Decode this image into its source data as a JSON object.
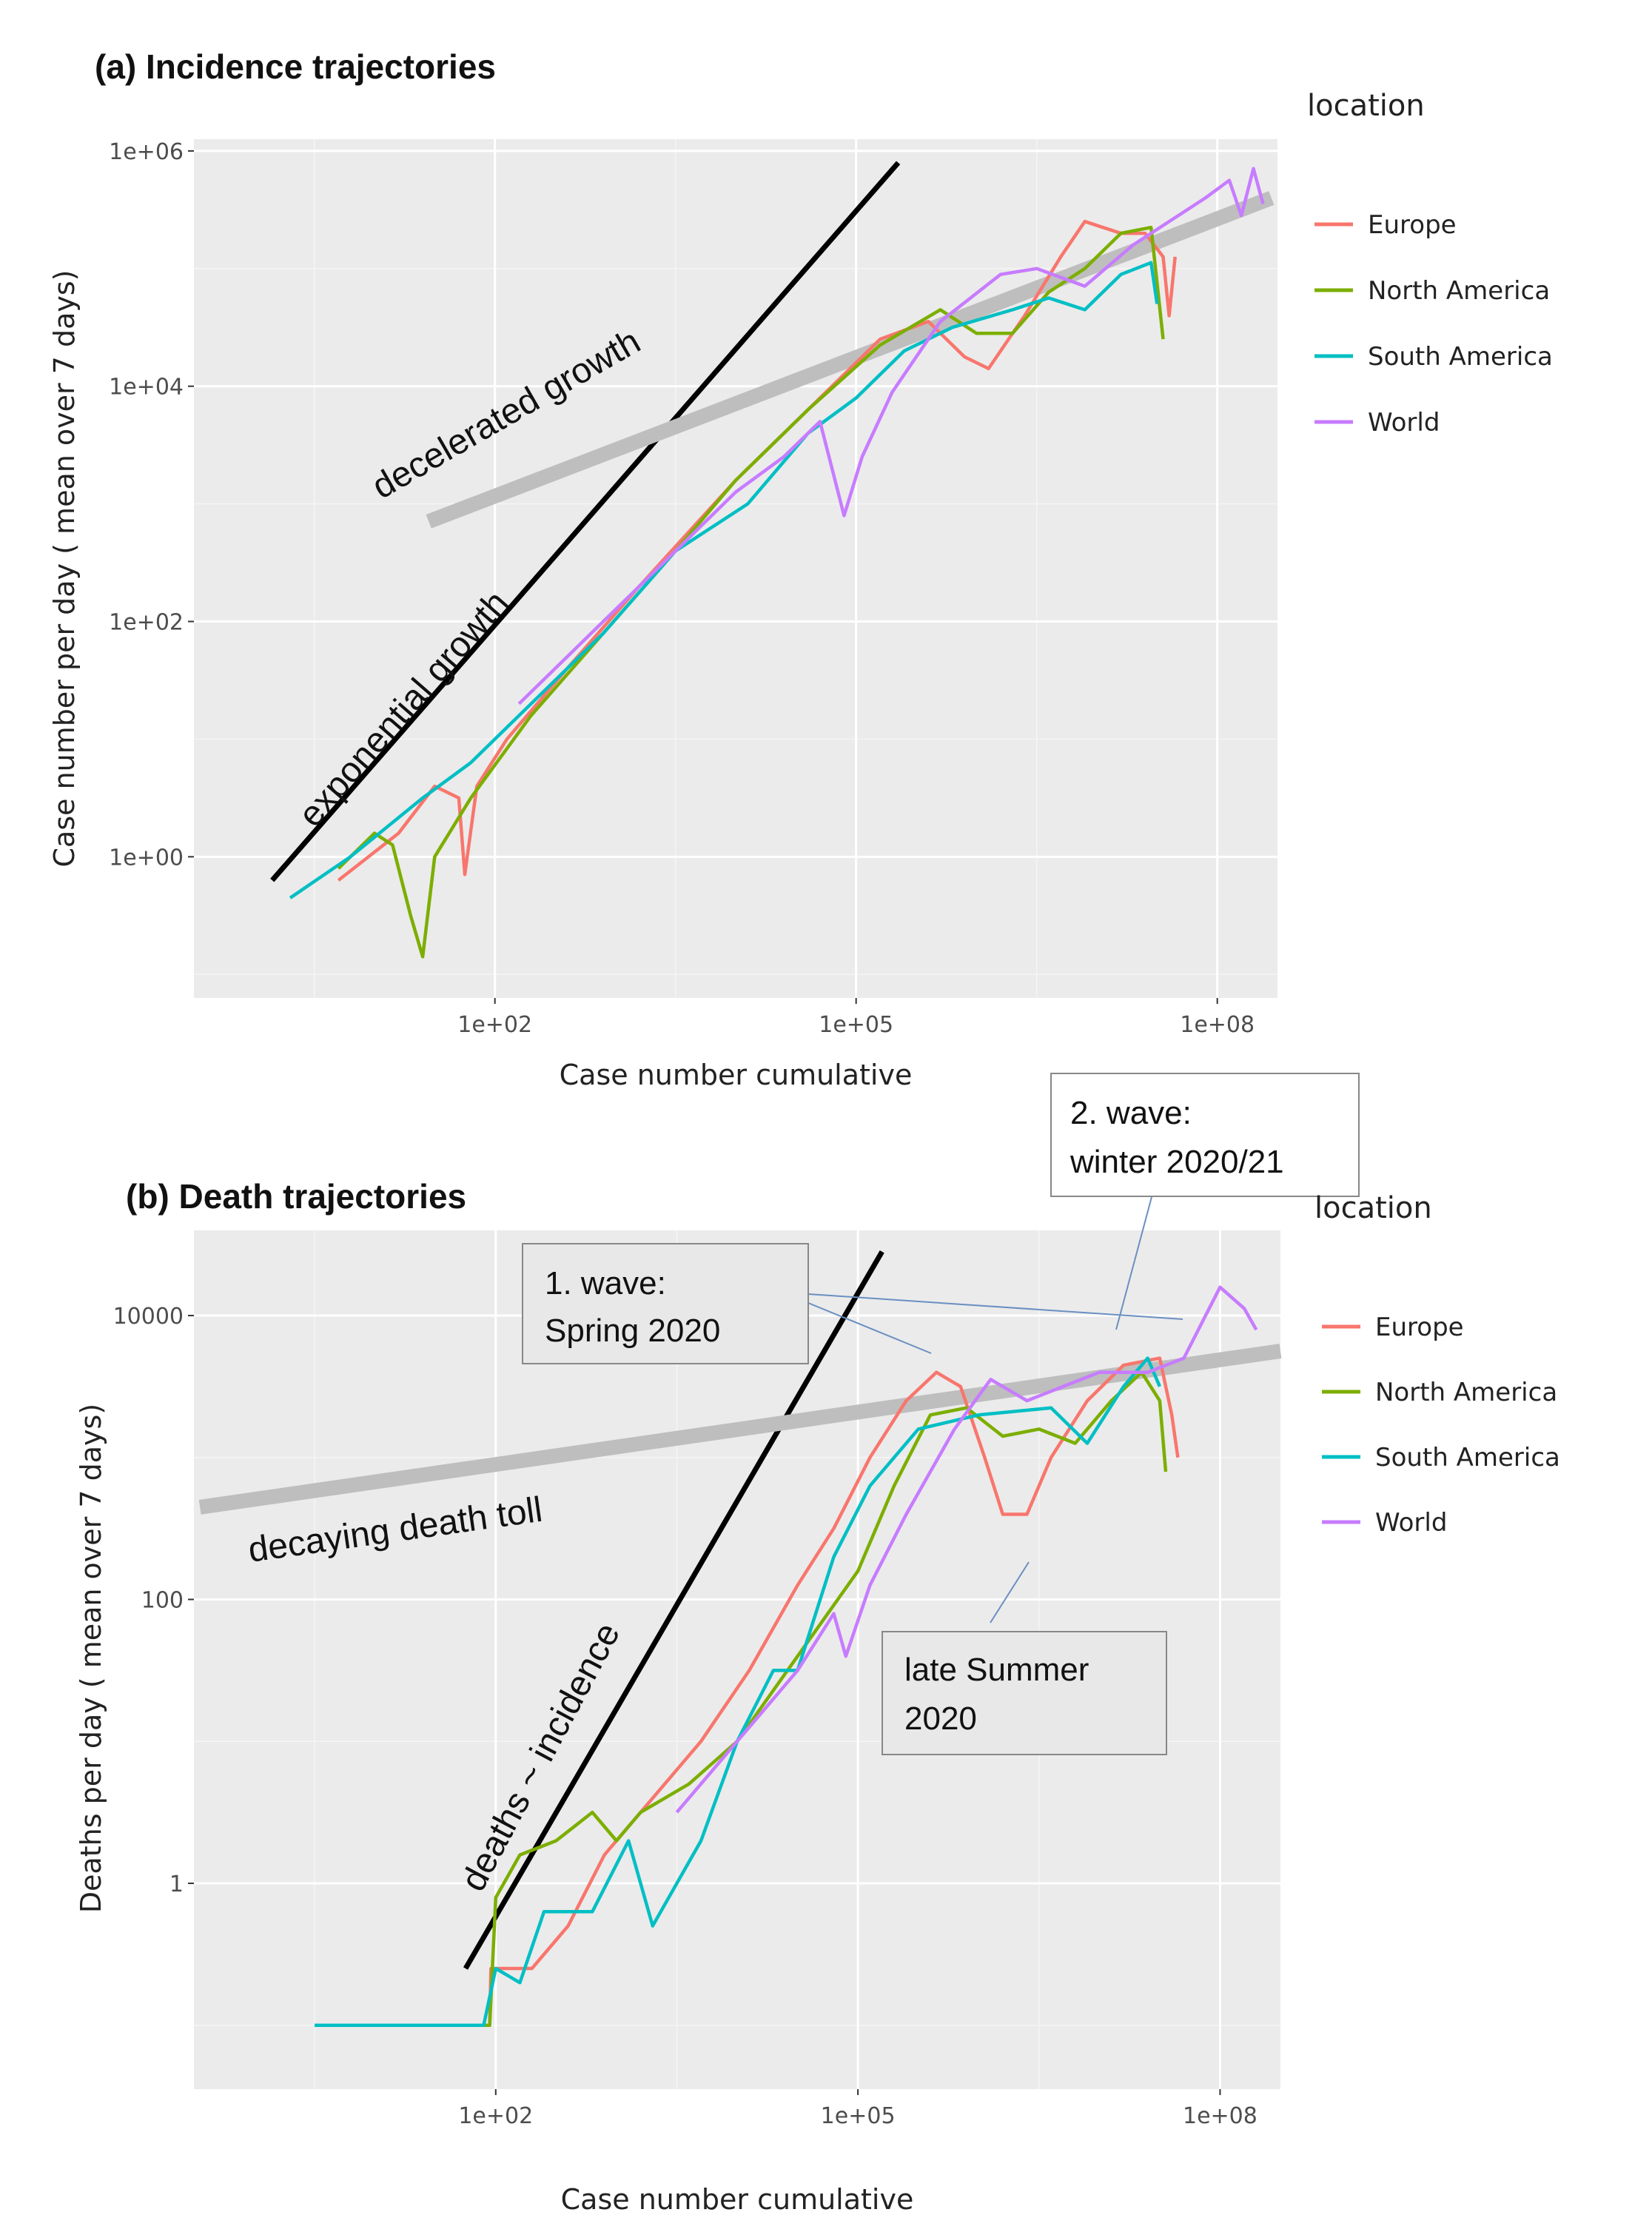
{
  "colors": {
    "Europe": "#F8766D",
    "North America": "#7CAE00",
    "South America": "#00BFC4",
    "World": "#C77CFF",
    "panel_bg": "#EBEBEB",
    "grid": "#FFFFFF",
    "trend_black": "#000000",
    "trend_grey": "#BEBEBE"
  },
  "chart_data": [
    {
      "type": "line",
      "title": "(a) Incidence trajectories",
      "xlabel": "Case number cumulative",
      "ylabel": "Case number per day ( mean over 7 days)",
      "x_scale": "log10",
      "y_scale": "log10",
      "xlim_log10": [
        -0.5,
        8.5
      ],
      "ylim_log10": [
        -1.2,
        6.1
      ],
      "x_ticks": [
        {
          "log": 2,
          "label": "1e+02"
        },
        {
          "log": 5,
          "label": "1e+05"
        },
        {
          "log": 8,
          "label": "1e+08"
        }
      ],
      "y_ticks": [
        {
          "log": 0,
          "label": "1e+00"
        },
        {
          "log": 2,
          "label": "1e+02"
        },
        {
          "log": 4,
          "label": "1e+04"
        },
        {
          "log": 6,
          "label": "1e+06"
        }
      ],
      "legend": {
        "title": "location",
        "position": "right",
        "entries": [
          "Europe",
          "North America",
          "South America",
          "World"
        ]
      },
      "series": [
        {
          "name": "Europe",
          "log_points": [
            [
              0.7,
              -0.2
            ],
            [
              1.2,
              0.2
            ],
            [
              1.5,
              0.6
            ],
            [
              1.7,
              0.5
            ],
            [
              1.75,
              -0.15
            ],
            [
              1.85,
              0.6
            ],
            [
              2.1,
              1.0
            ],
            [
              2.6,
              1.6
            ],
            [
              3.2,
              2.3
            ],
            [
              4.0,
              3.2
            ],
            [
              4.6,
              3.8
            ],
            [
              5.2,
              4.4
            ],
            [
              5.6,
              4.55
            ],
            [
              5.9,
              4.25
            ],
            [
              6.1,
              4.15
            ],
            [
              6.4,
              4.6
            ],
            [
              6.7,
              5.1
            ],
            [
              6.9,
              5.4
            ],
            [
              7.2,
              5.3
            ],
            [
              7.4,
              5.3
            ],
            [
              7.55,
              5.1
            ],
            [
              7.6,
              4.6
            ],
            [
              7.65,
              5.1
            ]
          ]
        },
        {
          "name": "North America",
          "log_points": [
            [
              0.7,
              -0.1
            ],
            [
              1.0,
              0.2
            ],
            [
              1.15,
              0.1
            ],
            [
              1.3,
              -0.5
            ],
            [
              1.4,
              -0.85
            ],
            [
              1.5,
              0.0
            ],
            [
              1.8,
              0.5
            ],
            [
              2.3,
              1.2
            ],
            [
              2.9,
              1.9
            ],
            [
              3.5,
              2.6
            ],
            [
              4.0,
              3.2
            ],
            [
              4.6,
              3.8
            ],
            [
              5.2,
              4.35
            ],
            [
              5.7,
              4.65
            ],
            [
              6.0,
              4.45
            ],
            [
              6.3,
              4.45
            ],
            [
              6.6,
              4.8
            ],
            [
              6.9,
              5.0
            ],
            [
              7.2,
              5.3
            ],
            [
              7.45,
              5.35
            ],
            [
              7.55,
              4.4
            ]
          ]
        },
        {
          "name": "South America",
          "log_points": [
            [
              0.3,
              -0.35
            ],
            [
              0.8,
              0.0
            ],
            [
              1.4,
              0.5
            ],
            [
              1.8,
              0.8
            ],
            [
              2.3,
              1.3
            ],
            [
              2.9,
              1.9
            ],
            [
              3.5,
              2.6
            ],
            [
              4.1,
              3.0
            ],
            [
              4.6,
              3.6
            ],
            [
              5.0,
              3.9
            ],
            [
              5.4,
              4.3
            ],
            [
              5.8,
              4.5
            ],
            [
              6.3,
              4.65
            ],
            [
              6.6,
              4.75
            ],
            [
              6.9,
              4.65
            ],
            [
              7.2,
              4.95
            ],
            [
              7.45,
              5.05
            ],
            [
              7.5,
              4.7
            ]
          ]
        },
        {
          "name": "World",
          "log_points": [
            [
              2.2,
              1.3
            ],
            [
              2.8,
              1.9
            ],
            [
              3.4,
              2.5
            ],
            [
              4.0,
              3.1
            ],
            [
              4.4,
              3.4
            ],
            [
              4.7,
              3.7
            ],
            [
              4.9,
              2.9
            ],
            [
              5.05,
              3.4
            ],
            [
              5.3,
              3.95
            ],
            [
              5.7,
              4.55
            ],
            [
              6.2,
              4.95
            ],
            [
              6.5,
              5.0
            ],
            [
              6.9,
              4.85
            ],
            [
              7.3,
              5.2
            ],
            [
              7.6,
              5.4
            ],
            [
              7.9,
              5.6
            ],
            [
              8.1,
              5.75
            ],
            [
              8.2,
              5.45
            ],
            [
              8.3,
              5.85
            ],
            [
              8.38,
              5.55
            ]
          ]
        }
      ],
      "trend_lines": [
        {
          "label": "exponential growth",
          "color": "black",
          "log_points": [
            [
              0.15,
              -0.2
            ],
            [
              5.35,
              5.9
            ]
          ]
        },
        {
          "label": "decelerated growth",
          "color": "grey",
          "log_points": [
            [
              1.45,
              2.85
            ],
            [
              8.45,
              5.6
            ]
          ]
        }
      ]
    },
    {
      "type": "line",
      "title": "(b) Death trajectories",
      "xlabel": "Case number cumulative",
      "ylabel": "Deaths per day ( mean over 7 days)",
      "x_scale": "log10",
      "y_scale": "log10",
      "xlim_log10": [
        -0.5,
        8.5
      ],
      "ylim_log10": [
        -1.45,
        4.6
      ],
      "x_ticks": [
        {
          "log": 2,
          "label": "1e+02"
        },
        {
          "log": 5,
          "label": "1e+05"
        },
        {
          "log": 8,
          "label": "1e+08"
        }
      ],
      "y_ticks": [
        {
          "log": 0,
          "label": "1"
        },
        {
          "log": 2,
          "label": "100"
        },
        {
          "log": 4,
          "label": "10000"
        }
      ],
      "legend": {
        "title": "location",
        "position": "right",
        "entries": [
          "Europe",
          "North America",
          "South America",
          "World"
        ]
      },
      "series": [
        {
          "name": "Europe",
          "log_points": [
            [
              0.5,
              -1.0
            ],
            [
              1.7,
              -1.0
            ],
            [
              1.95,
              -1.0
            ],
            [
              1.96,
              -0.6
            ],
            [
              2.3,
              -0.6
            ],
            [
              2.6,
              -0.3
            ],
            [
              2.9,
              0.2
            ],
            [
              3.3,
              0.6
            ],
            [
              3.7,
              1.0
            ],
            [
              4.1,
              1.5
            ],
            [
              4.5,
              2.1
            ],
            [
              4.8,
              2.5
            ],
            [
              5.1,
              3.0
            ],
            [
              5.4,
              3.4
            ],
            [
              5.65,
              3.6
            ],
            [
              5.85,
              3.5
            ],
            [
              6.05,
              3.0
            ],
            [
              6.2,
              2.6
            ],
            [
              6.4,
              2.6
            ],
            [
              6.6,
              3.0
            ],
            [
              6.9,
              3.4
            ],
            [
              7.2,
              3.65
            ],
            [
              7.5,
              3.7
            ],
            [
              7.6,
              3.3
            ],
            [
              7.65,
              3.0
            ]
          ]
        },
        {
          "name": "North America",
          "log_points": [
            [
              0.5,
              -1.0
            ],
            [
              1.8,
              -1.0
            ],
            [
              1.95,
              -1.0
            ],
            [
              2.0,
              -0.1
            ],
            [
              2.2,
              0.2
            ],
            [
              2.5,
              0.3
            ],
            [
              2.8,
              0.5
            ],
            [
              3.0,
              0.3
            ],
            [
              3.2,
              0.5
            ],
            [
              3.6,
              0.7
            ],
            [
              4.0,
              1.0
            ],
            [
              4.5,
              1.6
            ],
            [
              5.0,
              2.2
            ],
            [
              5.3,
              2.8
            ],
            [
              5.6,
              3.3
            ],
            [
              5.9,
              3.35
            ],
            [
              6.2,
              3.15
            ],
            [
              6.5,
              3.2
            ],
            [
              6.8,
              3.1
            ],
            [
              7.1,
              3.4
            ],
            [
              7.35,
              3.6
            ],
            [
              7.5,
              3.4
            ],
            [
              7.55,
              2.9
            ]
          ]
        },
        {
          "name": "South America",
          "log_points": [
            [
              0.5,
              -1.0
            ],
            [
              1.85,
              -1.0
            ],
            [
              1.9,
              -1.0
            ],
            [
              2.0,
              -0.6
            ],
            [
              2.2,
              -0.7
            ],
            [
              2.4,
              -0.2
            ],
            [
              2.8,
              -0.2
            ],
            [
              3.1,
              0.3
            ],
            [
              3.3,
              -0.3
            ],
            [
              3.7,
              0.3
            ],
            [
              4.0,
              1.0
            ],
            [
              4.3,
              1.5
            ],
            [
              4.5,
              1.5
            ],
            [
              4.8,
              2.3
            ],
            [
              5.1,
              2.8
            ],
            [
              5.5,
              3.2
            ],
            [
              6.0,
              3.3
            ],
            [
              6.6,
              3.35
            ],
            [
              6.9,
              3.1
            ],
            [
              7.2,
              3.5
            ],
            [
              7.4,
              3.7
            ],
            [
              7.5,
              3.5
            ]
          ]
        },
        {
          "name": "World",
          "log_points": [
            [
              3.5,
              0.5
            ],
            [
              4.0,
              1.0
            ],
            [
              4.5,
              1.5
            ],
            [
              4.8,
              1.9
            ],
            [
              4.9,
              1.6
            ],
            [
              5.1,
              2.1
            ],
            [
              5.4,
              2.6
            ],
            [
              5.8,
              3.2
            ],
            [
              6.1,
              3.55
            ],
            [
              6.4,
              3.4
            ],
            [
              6.7,
              3.5
            ],
            [
              7.0,
              3.6
            ],
            [
              7.4,
              3.6
            ],
            [
              7.7,
              3.7
            ],
            [
              8.0,
              4.2
            ],
            [
              8.2,
              4.05
            ],
            [
              8.3,
              3.9
            ]
          ]
        }
      ],
      "trend_lines": [
        {
          "label": "deaths ~ incidence",
          "color": "black",
          "log_points": [
            [
              1.75,
              -0.6
            ],
            [
              5.2,
              4.45
            ]
          ]
        },
        {
          "label": "decaying death toll",
          "color": "grey",
          "log_points": [
            [
              -0.45,
              2.65
            ],
            [
              8.5,
              3.75
            ]
          ]
        }
      ],
      "annotations": [
        {
          "line1": "1. wave:",
          "line2": "Spring 2020"
        },
        {
          "line1": "2. wave:",
          "line2": "winter 2020/21"
        },
        {
          "line1": "late Summer",
          "line2": "2020"
        }
      ]
    }
  ]
}
